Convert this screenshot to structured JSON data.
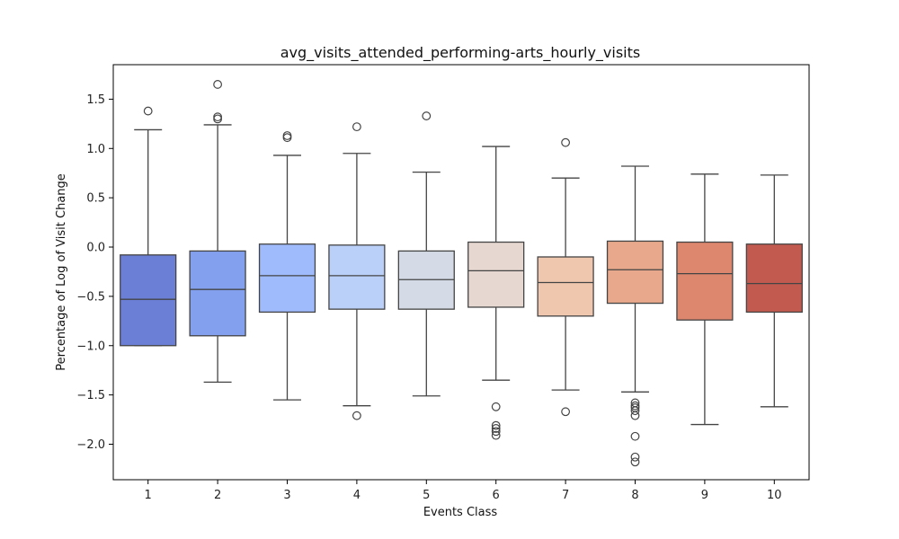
{
  "chart_data": {
    "type": "box",
    "title": "avg_visits_attended_performing-arts_hourly_visits",
    "xlabel": "Events Class",
    "ylabel": "Percentage of Log of Visit Change",
    "ylim": [
      -2.36,
      1.85
    ],
    "yticks": [
      -2.0,
      -1.5,
      -1.0,
      -0.5,
      0.0,
      0.5,
      1.0,
      1.5
    ],
    "ytick_labels": [
      "−2.0",
      "−1.5",
      "−1.0",
      "−0.5",
      "0.0",
      "0.5",
      "1.0",
      "1.5"
    ],
    "grid": false,
    "legend": "none",
    "categories": [
      "1",
      "2",
      "3",
      "4",
      "5",
      "6",
      "7",
      "8",
      "9",
      "10"
    ],
    "boxes": [
      {
        "category": "1",
        "whisker_low": -1.0,
        "q1": -1.0,
        "median": -0.53,
        "q3": -0.08,
        "whisker_high": 1.19,
        "outliers": [
          1.38
        ],
        "color": "#6b7fd7"
      },
      {
        "category": "2",
        "whisker_low": -1.37,
        "q1": -0.9,
        "median": -0.43,
        "q3": -0.04,
        "whisker_high": 1.24,
        "outliers": [
          1.65,
          1.32,
          1.3
        ],
        "color": "#82a0ed"
      },
      {
        "category": "3",
        "whisker_low": -1.55,
        "q1": -0.66,
        "median": -0.29,
        "q3": 0.03,
        "whisker_high": 0.93,
        "outliers": [
          1.13,
          1.11
        ],
        "color": "#9fbbfc"
      },
      {
        "category": "4",
        "whisker_low": -1.61,
        "q1": -0.63,
        "median": -0.29,
        "q3": 0.02,
        "whisker_high": 0.95,
        "outliers": [
          1.22,
          -1.71
        ],
        "color": "#bad0f8"
      },
      {
        "category": "5",
        "whisker_low": -1.51,
        "q1": -0.63,
        "median": -0.33,
        "q3": -0.04,
        "whisker_high": 0.76,
        "outliers": [
          1.33
        ],
        "color": "#d4dbe6"
      },
      {
        "category": "6",
        "whisker_low": -1.35,
        "q1": -0.61,
        "median": -0.24,
        "q3": 0.05,
        "whisker_high": 1.02,
        "outliers": [
          -1.62,
          -1.81,
          -1.84,
          -1.87,
          -1.91
        ],
        "color": "#e6d8d0"
      },
      {
        "category": "7",
        "whisker_low": -1.45,
        "q1": -0.7,
        "median": -0.36,
        "q3": -0.1,
        "whisker_high": 0.7,
        "outliers": [
          1.06,
          -1.67
        ],
        "color": "#efc6ae"
      },
      {
        "category": "8",
        "whisker_low": -1.47,
        "q1": -0.57,
        "median": -0.23,
        "q3": 0.06,
        "whisker_high": 0.82,
        "outliers": [
          -1.58,
          -1.61,
          -1.63,
          -1.66,
          -1.71,
          -1.92,
          -2.13,
          -2.18
        ],
        "color": "#e8a88b"
      },
      {
        "category": "9",
        "whisker_low": -1.8,
        "q1": -0.74,
        "median": -0.27,
        "q3": 0.05,
        "whisker_high": 0.74,
        "outliers": [],
        "color": "#dc876e"
      },
      {
        "category": "10",
        "whisker_low": -1.62,
        "q1": -0.66,
        "median": -0.37,
        "q3": 0.03,
        "whisker_high": 0.73,
        "outliers": [],
        "color": "#c35a4f"
      }
    ]
  }
}
